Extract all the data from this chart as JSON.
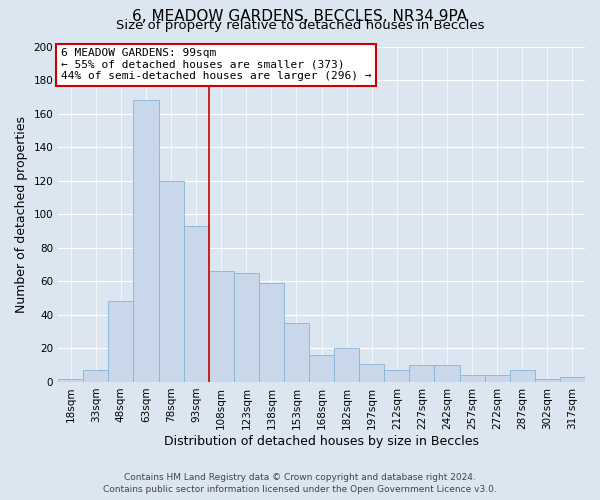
{
  "title": "6, MEADOW GARDENS, BECCLES, NR34 9PA",
  "subtitle": "Size of property relative to detached houses in Beccles",
  "xlabel": "Distribution of detached houses by size in Beccles",
  "ylabel": "Number of detached properties",
  "bin_labels": [
    "18sqm",
    "33sqm",
    "48sqm",
    "63sqm",
    "78sqm",
    "93sqm",
    "108sqm",
    "123sqm",
    "138sqm",
    "153sqm",
    "168sqm",
    "182sqm",
    "197sqm",
    "212sqm",
    "227sqm",
    "242sqm",
    "257sqm",
    "272sqm",
    "287sqm",
    "302sqm",
    "317sqm"
  ],
  "bar_heights": [
    2,
    7,
    48,
    168,
    120,
    93,
    66,
    65,
    59,
    35,
    16,
    20,
    11,
    7,
    10,
    10,
    4,
    4,
    7,
    2,
    3
  ],
  "bar_color": "#c8d8ea",
  "bar_edge_color": "#8ab4d4",
  "vline_x": 5.5,
  "vline_color": "#cc0000",
  "annotation_title": "6 MEADOW GARDENS: 99sqm",
  "annotation_line1": "← 55% of detached houses are smaller (373)",
  "annotation_line2": "44% of semi-detached houses are larger (296) →",
  "annotation_box_facecolor": "#ffffff",
  "annotation_box_edgecolor": "#cc0000",
  "ylim": [
    0,
    200
  ],
  "yticks": [
    0,
    20,
    40,
    60,
    80,
    100,
    120,
    140,
    160,
    180,
    200
  ],
  "footer_line1": "Contains HM Land Registry data © Crown copyright and database right 2024.",
  "footer_line2": "Contains public sector information licensed under the Open Government Licence v3.0.",
  "fig_bg_color": "#dce6f0",
  "plot_bg_color": "#dce6f0",
  "grid_color": "#ffffff",
  "title_fontsize": 11,
  "subtitle_fontsize": 9.5,
  "axis_label_fontsize": 9,
  "tick_fontsize": 7.5,
  "annotation_fontsize": 8,
  "footer_fontsize": 6.5
}
